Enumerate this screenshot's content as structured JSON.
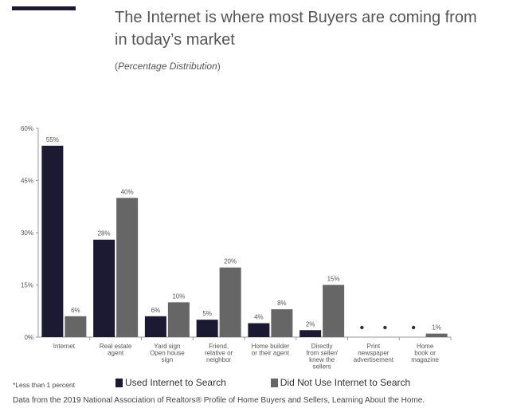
{
  "header": {
    "title": "The Internet is where most Buyers are coming from in today’s market",
    "subtitle_open": "(",
    "subtitle_italic": "Percentage Distribution",
    "subtitle_close": ")"
  },
  "colors": {
    "used": "#1c1a33",
    "not_used": "#666666",
    "accent_bar": "#1c1a33"
  },
  "chart_data": {
    "type": "bar",
    "categories": [
      [
        "Internet"
      ],
      [
        "Real estate",
        "agent"
      ],
      [
        "Yard sign",
        "Open house",
        "sign"
      ],
      [
        "Friend,",
        "relative or",
        "neighbor"
      ],
      [
        "Home builder",
        "or their agent"
      ],
      [
        "Directly",
        "from seller/",
        "knew the",
        "sellers"
      ],
      [
        "Print",
        "newspaper",
        "advertisement"
      ],
      [
        "Home",
        "book or",
        "magazine"
      ]
    ],
    "series": [
      {
        "name": "Used Internet to Search",
        "values": [
          55,
          28,
          6,
          5,
          4,
          2,
          0,
          0
        ],
        "labels": [
          "55%",
          "28%",
          "6%",
          "5%",
          "4%",
          "2%",
          "•",
          "•"
        ]
      },
      {
        "name": "Did Not Use Internet to Search",
        "values": [
          6,
          40,
          10,
          20,
          8,
          15,
          0,
          1
        ],
        "labels": [
          "6%",
          "40%",
          "10%",
          "20%",
          "8%",
          "15%",
          "•",
          "1%"
        ]
      }
    ],
    "yticks": [
      "60%",
      "45%",
      "30%",
      "15%",
      "0%"
    ],
    "ylim": [
      0,
      60
    ],
    "grid": false,
    "legend_position": "bottom"
  },
  "footer": {
    "footnote": "*Less than 1 percent",
    "source": "Data from the 2019 National Association of Realtors® Profile of Home Buyers and Sellers, Learning About the Home."
  }
}
